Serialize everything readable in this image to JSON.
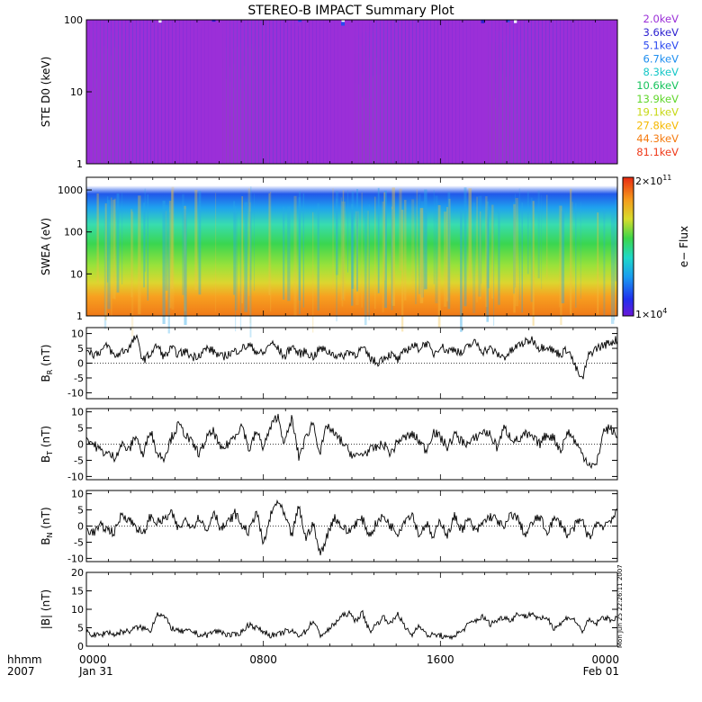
{
  "title": "STEREO-B IMPACT Summary Plot",
  "stamp": "Mon Jun 25 22:26:11 2007",
  "chart_data": [
    {
      "type": "line",
      "id": "ste",
      "ylabel": "STE D0 (keV)",
      "yscale": "log",
      "ylim": [
        1,
        100
      ],
      "yticks": [
        "1",
        "10",
        "100"
      ],
      "legend_position": "right",
      "series": [
        {
          "name": "2.0keV",
          "color": "#9b2fd8",
          "level": 95
        },
        {
          "name": "3.6keV",
          "color": "#2b1fd0",
          "level": 88
        },
        {
          "name": "5.1keV",
          "color": "#2a48f0",
          "level": 78
        },
        {
          "name": "6.7keV",
          "color": "#1e8ef0",
          "level": 64
        },
        {
          "name": "8.3keV",
          "color": "#16c7c7",
          "level": 45
        },
        {
          "name": "10.6keV",
          "color": "#16c35c",
          "level": 30
        },
        {
          "name": "13.9keV",
          "color": "#5fd62a",
          "level": 20
        },
        {
          "name": "19.1keV",
          "color": "#c7d816",
          "level": 12
        },
        {
          "name": "27.8keV",
          "color": "#f5b800",
          "level": 7
        },
        {
          "name": "44.3keV",
          "color": "#f57b10",
          "level": 4
        },
        {
          "name": "81.1keV",
          "color": "#ef3a1a",
          "level": 2
        }
      ]
    },
    {
      "type": "heatmap",
      "id": "swea",
      "ylabel": "SWEA (eV)",
      "yscale": "log",
      "ylim": [
        1,
        2000
      ],
      "yticks": [
        "1",
        "10",
        "100",
        "1000"
      ],
      "colorbar": {
        "label": "e− Flux",
        "max": "2×10",
        "max_exp": "11",
        "min": "1×10",
        "min_exp": "4"
      }
    },
    {
      "type": "line",
      "id": "br",
      "ylabel": "B",
      "ylabel_sub": "R",
      "ylabel_unit": " (nT)",
      "ylim": [
        -12,
        12
      ],
      "yticks": [
        10,
        5,
        0,
        -5,
        -10
      ],
      "series": [
        {
          "values": [
            5,
            3,
            4,
            6,
            2,
            4,
            5,
            9,
            1,
            3,
            6,
            2,
            5,
            3,
            4,
            2,
            3,
            5,
            4,
            2,
            3,
            4,
            5,
            6,
            4,
            3,
            7,
            5,
            2,
            6,
            3,
            4,
            2,
            5,
            4,
            3,
            2,
            4,
            3,
            5,
            2,
            0,
            2,
            3,
            1,
            4,
            6,
            5,
            7,
            3,
            6,
            4,
            5,
            3,
            6,
            7,
            4,
            5,
            3,
            2,
            4,
            6,
            7,
            8,
            5,
            6,
            4,
            3,
            5,
            -1,
            -6,
            3,
            5,
            6,
            7,
            8
          ]
        }
      ]
    },
    {
      "type": "line",
      "id": "bt",
      "ylabel": "B",
      "ylabel_sub": "T",
      "ylabel_unit": " (nT)",
      "ylim": [
        -11,
        11
      ],
      "yticks": [
        10,
        5,
        0,
        -5,
        -10
      ],
      "series": [
        {
          "values": [
            2,
            0,
            -2,
            -3,
            -4,
            0,
            -2,
            3,
            -4,
            5,
            -3,
            -4,
            2,
            6,
            3,
            0,
            -3,
            2,
            4,
            -2,
            0,
            3,
            6,
            -2,
            4,
            -1,
            5,
            9,
            0,
            8,
            -4,
            2,
            7,
            -3,
            6,
            3,
            1,
            -2,
            -4,
            -3,
            -2,
            -1,
            0,
            -3,
            1,
            2,
            3,
            1,
            -2,
            4,
            2,
            -1,
            3,
            1,
            0,
            2,
            4,
            3,
            -1,
            5,
            2,
            1,
            3,
            2,
            0,
            3,
            2,
            -2,
            4,
            1,
            -3,
            -6,
            -7,
            4,
            5,
            2
          ]
        }
      ]
    },
    {
      "type": "line",
      "id": "bn",
      "ylabel": "B",
      "ylabel_sub": "N",
      "ylabel_unit": " (nT)",
      "ylim": [
        -11,
        11
      ],
      "yticks": [
        10,
        5,
        0,
        -5,
        -10
      ],
      "series": [
        {
          "values": [
            -1,
            -2,
            0,
            -1,
            -2,
            4,
            2,
            0,
            -3,
            3,
            1,
            2,
            4,
            -1,
            2,
            0,
            3,
            -2,
            5,
            -1,
            1,
            4,
            0,
            -2,
            5,
            -6,
            3,
            8,
            3,
            -3,
            6,
            -4,
            1,
            -9,
            -3,
            3,
            0,
            -2,
            1,
            2,
            -3,
            1,
            3,
            0,
            -2,
            2,
            4,
            -3,
            1,
            -4,
            2,
            -3,
            3,
            -1,
            2,
            -2,
            1,
            3,
            2,
            -1,
            4,
            2,
            -3,
            1,
            3,
            -2,
            2,
            1,
            -3,
            0,
            2,
            -4,
            1,
            0,
            2,
            4
          ]
        }
      ]
    },
    {
      "type": "line",
      "id": "bmag",
      "ylabel": "|B| (nT)",
      "ylim": [
        0,
        20
      ],
      "yticks": [
        20,
        15,
        10,
        5,
        0
      ],
      "series": [
        {
          "values": [
            4,
            3,
            3,
            4,
            3,
            4,
            4,
            5,
            5,
            4,
            9,
            8,
            5,
            4,
            4,
            4,
            3,
            3,
            4,
            4,
            3,
            3,
            4,
            6,
            5,
            4,
            3,
            3,
            4,
            4,
            3,
            4,
            7,
            3,
            4,
            6,
            8,
            9,
            7,
            9,
            4,
            6,
            8,
            6,
            9,
            5,
            3,
            6,
            3,
            3,
            3,
            2,
            3,
            4,
            6,
            7,
            8,
            6,
            7,
            8,
            7,
            9,
            8,
            9,
            7,
            8,
            5,
            6,
            8,
            7,
            4,
            7,
            6,
            8,
            7,
            8
          ]
        }
      ]
    }
  ],
  "x_axis": {
    "row1_label": "hhmm",
    "row2_label": "2007",
    "ticks": [
      {
        "time": "0000",
        "date": "Jan 31"
      },
      {
        "time": "0800",
        "date": ""
      },
      {
        "time": "1600",
        "date": ""
      },
      {
        "time": "0000",
        "date": "Feb 01"
      }
    ]
  }
}
